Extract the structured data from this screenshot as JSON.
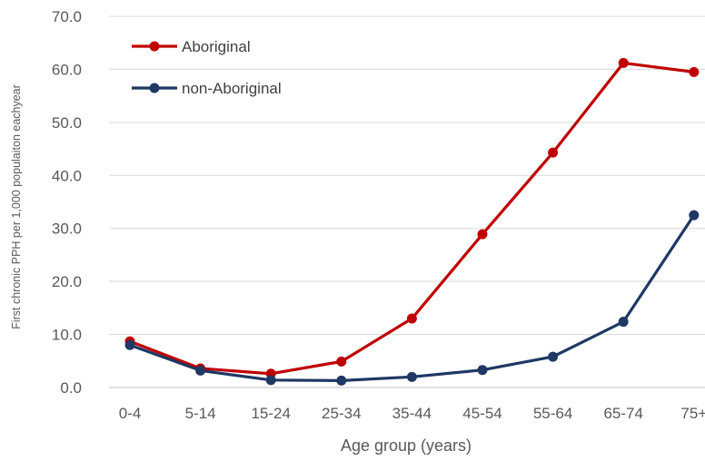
{
  "chart_data": {
    "type": "line",
    "title": "",
    "xlabel": "Age group  (years)",
    "ylabel": "First chronic PPH per 1,000 populaiton eachyear",
    "categories": [
      "0-4",
      "5-14",
      "15-24",
      "25-34",
      "35-44",
      "45-54",
      "55-64",
      "65-74",
      "75+"
    ],
    "ylim": [
      0,
      70
    ],
    "yticks": [
      "0.0",
      "10.0",
      "20.0",
      "30.0",
      "40.0",
      "50.0",
      "60.0",
      "70.0"
    ],
    "ytick_values": [
      0,
      10,
      20,
      30,
      40,
      50,
      60,
      70
    ],
    "grid": true,
    "legend_position": "top-left",
    "series": [
      {
        "name": "Aboriginal",
        "color": "#c00000",
        "values": [
          8.7,
          3.6,
          2.6,
          4.9,
          13.0,
          28.9,
          44.3,
          61.2,
          59.5
        ]
      },
      {
        "name": "non-Aboriginal",
        "color": "#1f3864",
        "values": [
          8.0,
          3.2,
          1.4,
          1.3,
          2.0,
          3.3,
          5.8,
          12.4,
          32.5
        ]
      }
    ]
  }
}
